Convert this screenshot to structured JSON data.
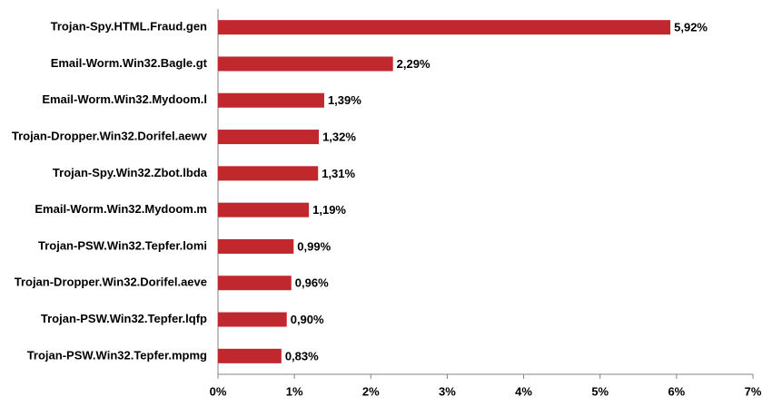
{
  "chart_data": {
    "type": "hbar",
    "categories": [
      "Trojan-Spy.HTML.Fraud.gen",
      "Email-Worm.Win32.Bagle.gt",
      "Email-Worm.Win32.Mydoom.l",
      "Trojan-Dropper.Win32.Dorifel.aewv",
      "Trojan-Spy.Win32.Zbot.lbda",
      "Email-Worm.Win32.Mydoom.m",
      "Trojan-PSW.Win32.Tepfer.lomi",
      "Trojan-Dropper.Win32.Dorifel.aeve",
      "Trojan-PSW.Win32.Tepfer.lqfp",
      "Trojan-PSW.Win32.Tepfer.mpmg"
    ],
    "values": [
      5.92,
      2.29,
      1.39,
      1.32,
      1.31,
      1.19,
      0.99,
      0.96,
      0.9,
      0.83
    ],
    "value_labels": [
      "5,92%",
      "2,29%",
      "1,39%",
      "1,32%",
      "1,31%",
      "1,19%",
      "0,99%",
      "0,96%",
      "0,90%",
      "0,83%"
    ],
    "color": "#c0282e",
    "xlim": [
      0,
      7
    ],
    "xticks": [
      {
        "value": 0,
        "label": "0%"
      },
      {
        "value": 1,
        "label": "1%"
      },
      {
        "value": 2,
        "label": "2%"
      },
      {
        "value": 3,
        "label": "3%"
      },
      {
        "value": 4,
        "label": "4%"
      },
      {
        "value": 5,
        "label": "5%"
      },
      {
        "value": 6,
        "label": "6%"
      },
      {
        "value": 7,
        "label": "7%"
      }
    ],
    "grid": false
  }
}
